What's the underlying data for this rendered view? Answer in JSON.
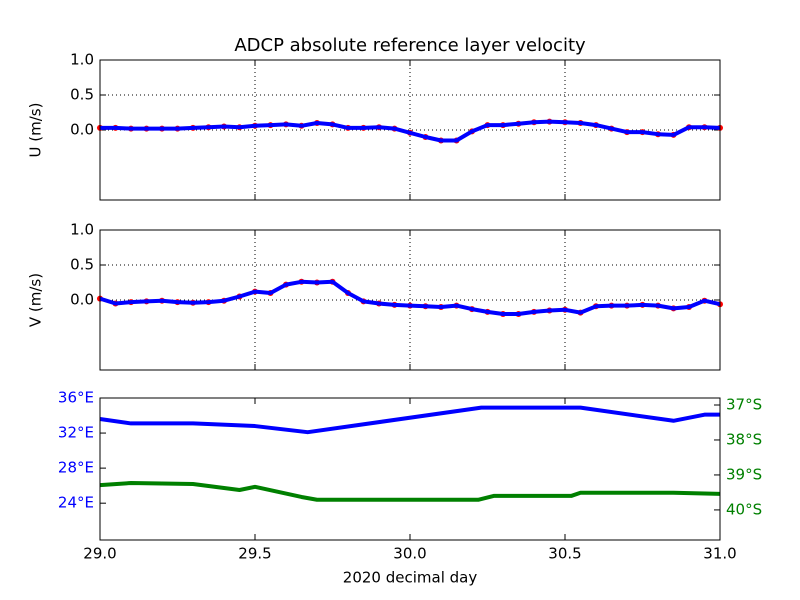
{
  "chart_data": [
    {
      "type": "line",
      "title": "ADCP absolute reference layer velocity",
      "ylabel": "U (m/s)",
      "x": [
        29.0,
        29.05,
        29.1,
        29.15,
        29.2,
        29.25,
        29.3,
        29.35,
        29.4,
        29.45,
        29.5,
        29.55,
        29.6,
        29.65,
        29.7,
        29.75,
        29.8,
        29.85,
        29.9,
        29.95,
        30.0,
        30.05,
        30.1,
        30.15,
        30.2,
        30.25,
        30.3,
        30.35,
        30.4,
        30.45,
        30.5,
        30.55,
        30.6,
        30.65,
        30.7,
        30.75,
        30.8,
        30.85,
        30.9,
        30.95,
        31.0
      ],
      "series": [
        {
          "color": "#ff0000",
          "style": "markers",
          "values": [
            0.03,
            0.03,
            0.02,
            0.02,
            0.02,
            0.02,
            0.03,
            0.04,
            0.05,
            0.04,
            0.06,
            0.07,
            0.08,
            0.06,
            0.1,
            0.08,
            0.03,
            0.03,
            0.04,
            0.02,
            -0.04,
            -0.1,
            -0.15,
            -0.15,
            -0.02,
            0.07,
            0.07,
            0.09,
            0.11,
            0.12,
            0.11,
            0.1,
            0.07,
            0.02,
            -0.03,
            -0.03,
            -0.06,
            -0.07,
            0.04,
            0.04,
            0.03
          ]
        },
        {
          "color": "#0000ff",
          "style": "line",
          "values": [
            0.03,
            0.03,
            0.02,
            0.02,
            0.02,
            0.02,
            0.03,
            0.04,
            0.05,
            0.04,
            0.06,
            0.07,
            0.08,
            0.06,
            0.1,
            0.08,
            0.03,
            0.03,
            0.04,
            0.02,
            -0.04,
            -0.1,
            -0.15,
            -0.15,
            -0.02,
            0.07,
            0.07,
            0.09,
            0.11,
            0.12,
            0.11,
            0.1,
            0.07,
            0.02,
            -0.03,
            -0.03,
            -0.06,
            -0.07,
            0.04,
            0.04,
            0.03
          ]
        }
      ],
      "ylim": [
        -1,
        1
      ],
      "yticks": [
        {
          "value": 1,
          "label": "1.0"
        },
        {
          "value": 0.5,
          "label": "0.5"
        },
        {
          "value": 0,
          "label": "0.0"
        }
      ],
      "grid": true
    },
    {
      "type": "line",
      "ylabel": "V (m/s)",
      "x": [
        29.0,
        29.05,
        29.1,
        29.15,
        29.2,
        29.25,
        29.3,
        29.35,
        29.4,
        29.45,
        29.5,
        29.55,
        29.6,
        29.65,
        29.7,
        29.75,
        29.8,
        29.85,
        29.9,
        29.95,
        30.0,
        30.05,
        30.1,
        30.15,
        30.2,
        30.25,
        30.3,
        30.35,
        30.4,
        30.45,
        30.5,
        30.55,
        30.6,
        30.65,
        30.7,
        30.75,
        30.8,
        30.85,
        30.9,
        30.95,
        31.0
      ],
      "series": [
        {
          "color": "#ff0000",
          "style": "markers",
          "values": [
            0.02,
            -0.05,
            -0.03,
            -0.02,
            -0.01,
            -0.03,
            -0.04,
            -0.03,
            -0.01,
            0.05,
            0.12,
            0.1,
            0.22,
            0.26,
            0.25,
            0.26,
            0.1,
            -0.02,
            -0.05,
            -0.07,
            -0.08,
            -0.09,
            -0.1,
            -0.08,
            -0.13,
            -0.17,
            -0.2,
            -0.2,
            -0.17,
            -0.15,
            -0.14,
            -0.18,
            -0.09,
            -0.08,
            -0.08,
            -0.07,
            -0.08,
            -0.12,
            -0.1,
            -0.01,
            -0.06
          ]
        },
        {
          "color": "#0000ff",
          "style": "line",
          "values": [
            0.02,
            -0.05,
            -0.03,
            -0.02,
            -0.01,
            -0.03,
            -0.04,
            -0.03,
            -0.01,
            0.05,
            0.12,
            0.1,
            0.22,
            0.26,
            0.25,
            0.26,
            0.1,
            -0.02,
            -0.05,
            -0.07,
            -0.08,
            -0.09,
            -0.1,
            -0.08,
            -0.13,
            -0.17,
            -0.2,
            -0.2,
            -0.17,
            -0.15,
            -0.14,
            -0.18,
            -0.09,
            -0.08,
            -0.08,
            -0.07,
            -0.08,
            -0.12,
            -0.1,
            -0.01,
            -0.06
          ]
        }
      ],
      "ylim": [
        -1,
        1
      ],
      "yticks": [
        {
          "value": 1,
          "label": "1.0"
        },
        {
          "value": 0.5,
          "label": "0.5"
        },
        {
          "value": 0,
          "label": "0.0"
        }
      ],
      "grid": true
    },
    {
      "type": "line",
      "xlabel": "2020 decimal day",
      "xlim": [
        29,
        31
      ],
      "xticks": [
        {
          "value": 29,
          "label": "29.0"
        },
        {
          "value": 29.5,
          "label": "29.5"
        },
        {
          "value": 30,
          "label": "30.0"
        },
        {
          "value": 30.5,
          "label": "30.5"
        },
        {
          "value": 31,
          "label": "31.0"
        }
      ],
      "series": [
        {
          "color": "#0000ff",
          "style": "line",
          "x": [
            29.0,
            29.1,
            29.3,
            29.5,
            29.67,
            30.23,
            30.55,
            30.85,
            30.95,
            31.0
          ],
          "values": [
            33.6,
            33.1,
            33.1,
            32.8,
            32.1,
            34.9,
            34.9,
            33.4,
            34.1,
            34.1
          ]
        },
        {
          "color": "#008000",
          "style": "line",
          "axis": "y2",
          "x": [
            29.0,
            29.1,
            29.3,
            29.45,
            29.5,
            29.65,
            29.7,
            30.22,
            30.27,
            30.52,
            30.55,
            30.85,
            31.0
          ],
          "values": [
            -39.29,
            -39.23,
            -39.26,
            -39.43,
            -39.34,
            -39.63,
            -39.71,
            -39.71,
            -39.6,
            -39.6,
            -39.51,
            -39.51,
            -39.54
          ]
        }
      ],
      "ylim": [
        19.8,
        36
      ],
      "yticks": [
        {
          "value": 36,
          "label": "36°E"
        },
        {
          "value": 32,
          "label": "32°E"
        },
        {
          "value": 28,
          "label": "28°E"
        },
        {
          "value": 24,
          "label": "24°E"
        }
      ],
      "y2lim": [
        -40.86,
        -36.8
      ],
      "y2ticks": [
        {
          "value": -37,
          "label": "37°S"
        },
        {
          "value": -38,
          "label": "38°S"
        },
        {
          "value": -39,
          "label": "39°S"
        },
        {
          "value": -40,
          "label": "40°S"
        }
      ],
      "grid": false
    }
  ]
}
